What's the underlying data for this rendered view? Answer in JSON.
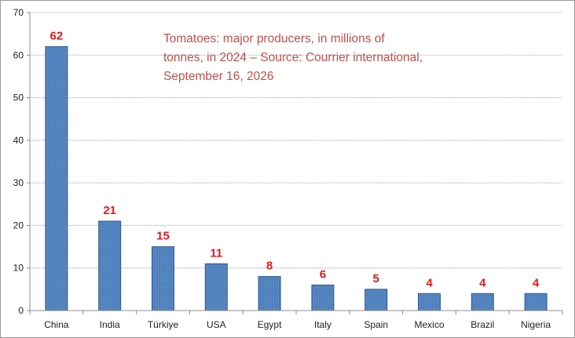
{
  "chart_data": {
    "type": "bar",
    "title_lines": [
      "Tomatoes: major producers, in millions of",
      "tonnes, in 2024 – Source: Courrier international,",
      "September 16, 2026"
    ],
    "categories": [
      "China",
      "India",
      "Türkiye",
      "USA",
      "Egypt",
      "Italy",
      "Spain",
      "Mexico",
      "Brazil",
      "Nigeria"
    ],
    "values": [
      62,
      21,
      15,
      11,
      8,
      6,
      5,
      4,
      4,
      4
    ],
    "data_labels": [
      "62",
      "21",
      "15",
      "11",
      "8",
      "6",
      "5",
      "4",
      "4",
      "4"
    ],
    "y_ticks": [
      "0",
      "10",
      "20",
      "30",
      "40",
      "50",
      "60",
      "70"
    ],
    "ylim": [
      0,
      70
    ],
    "y_step": 10,
    "xlabel": "",
    "ylabel": "",
    "grid": true,
    "legend": "none",
    "colors": {
      "bar": "#4f81bd",
      "bar_edge": "#2f5a8c",
      "data_label": "#e0191b",
      "title": "#c0504d",
      "grid": "#a0a0a0",
      "axis": "#8c8c8c"
    }
  }
}
